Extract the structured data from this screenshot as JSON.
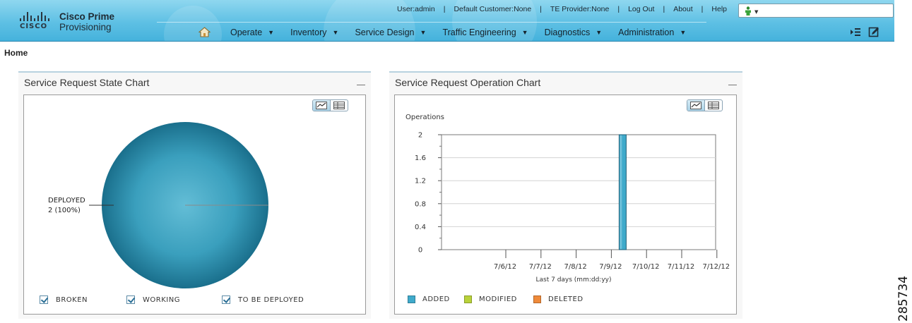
{
  "header": {
    "brand_short": "CISCO",
    "product_line1": "Cisco Prime",
    "product_line2": "Provisioning",
    "toplinks": {
      "user": "User:admin",
      "customer": "Default Customer:None",
      "provider": "TE Provider:None",
      "logout": "Log Out",
      "about": "About",
      "help": "Help"
    },
    "search": {
      "placeholder": ""
    },
    "nav": [
      "Operate",
      "Inventory",
      "Service Design",
      "Traffic Engineering",
      "Diagnostics",
      "Administration"
    ]
  },
  "breadcrumb": "Home",
  "state_portlet": {
    "title": "Service Request State Chart",
    "legend": [
      "BROKEN",
      "WORKING",
      "TO BE DEPLOYED"
    ]
  },
  "operation_portlet": {
    "title": "Service Request Operation Chart",
    "legend": [
      "ADDED",
      "MODIFIED",
      "DELETED"
    ]
  },
  "colors": {
    "pie": "#3a9fbd",
    "added": "#3faacb",
    "modified": "#b9d23a",
    "deleted": "#ef8a3a"
  },
  "chart_data": [
    {
      "type": "pie",
      "slices": [
        {
          "label": "DEPLOYED",
          "value": 2,
          "percent": 100,
          "annotation": "2 (100%)"
        }
      ]
    },
    {
      "type": "bar",
      "ylabel": "Operations",
      "xlabel": "Last 7 days (mm:dd:yy)",
      "categories": [
        "7/6/12",
        "7/7/12",
        "7/8/12",
        "7/9/12",
        "7/10/12",
        "7/11/12",
        "7/12/12"
      ],
      "x_tick_labels": [
        "7/6/12",
        "7/7/12",
        "7/8/12",
        "7/9/12",
        "7/10/12",
        "7/11/12",
        "7/12/12"
      ],
      "ylim": [
        0,
        2
      ],
      "yticks": [
        "0",
        "0.4",
        "0.8",
        "1.2",
        "1.6",
        "2"
      ],
      "series": [
        {
          "name": "ADDED",
          "values": [
            0,
            0,
            0,
            2,
            0,
            0,
            0
          ]
        },
        {
          "name": "MODIFIED",
          "values": [
            0,
            0,
            0,
            0,
            0,
            0,
            0
          ]
        },
        {
          "name": "DELETED",
          "values": [
            0,
            0,
            0,
            0,
            0,
            0,
            0
          ]
        }
      ],
      "grid": true
    }
  ],
  "figure_id": "285734"
}
